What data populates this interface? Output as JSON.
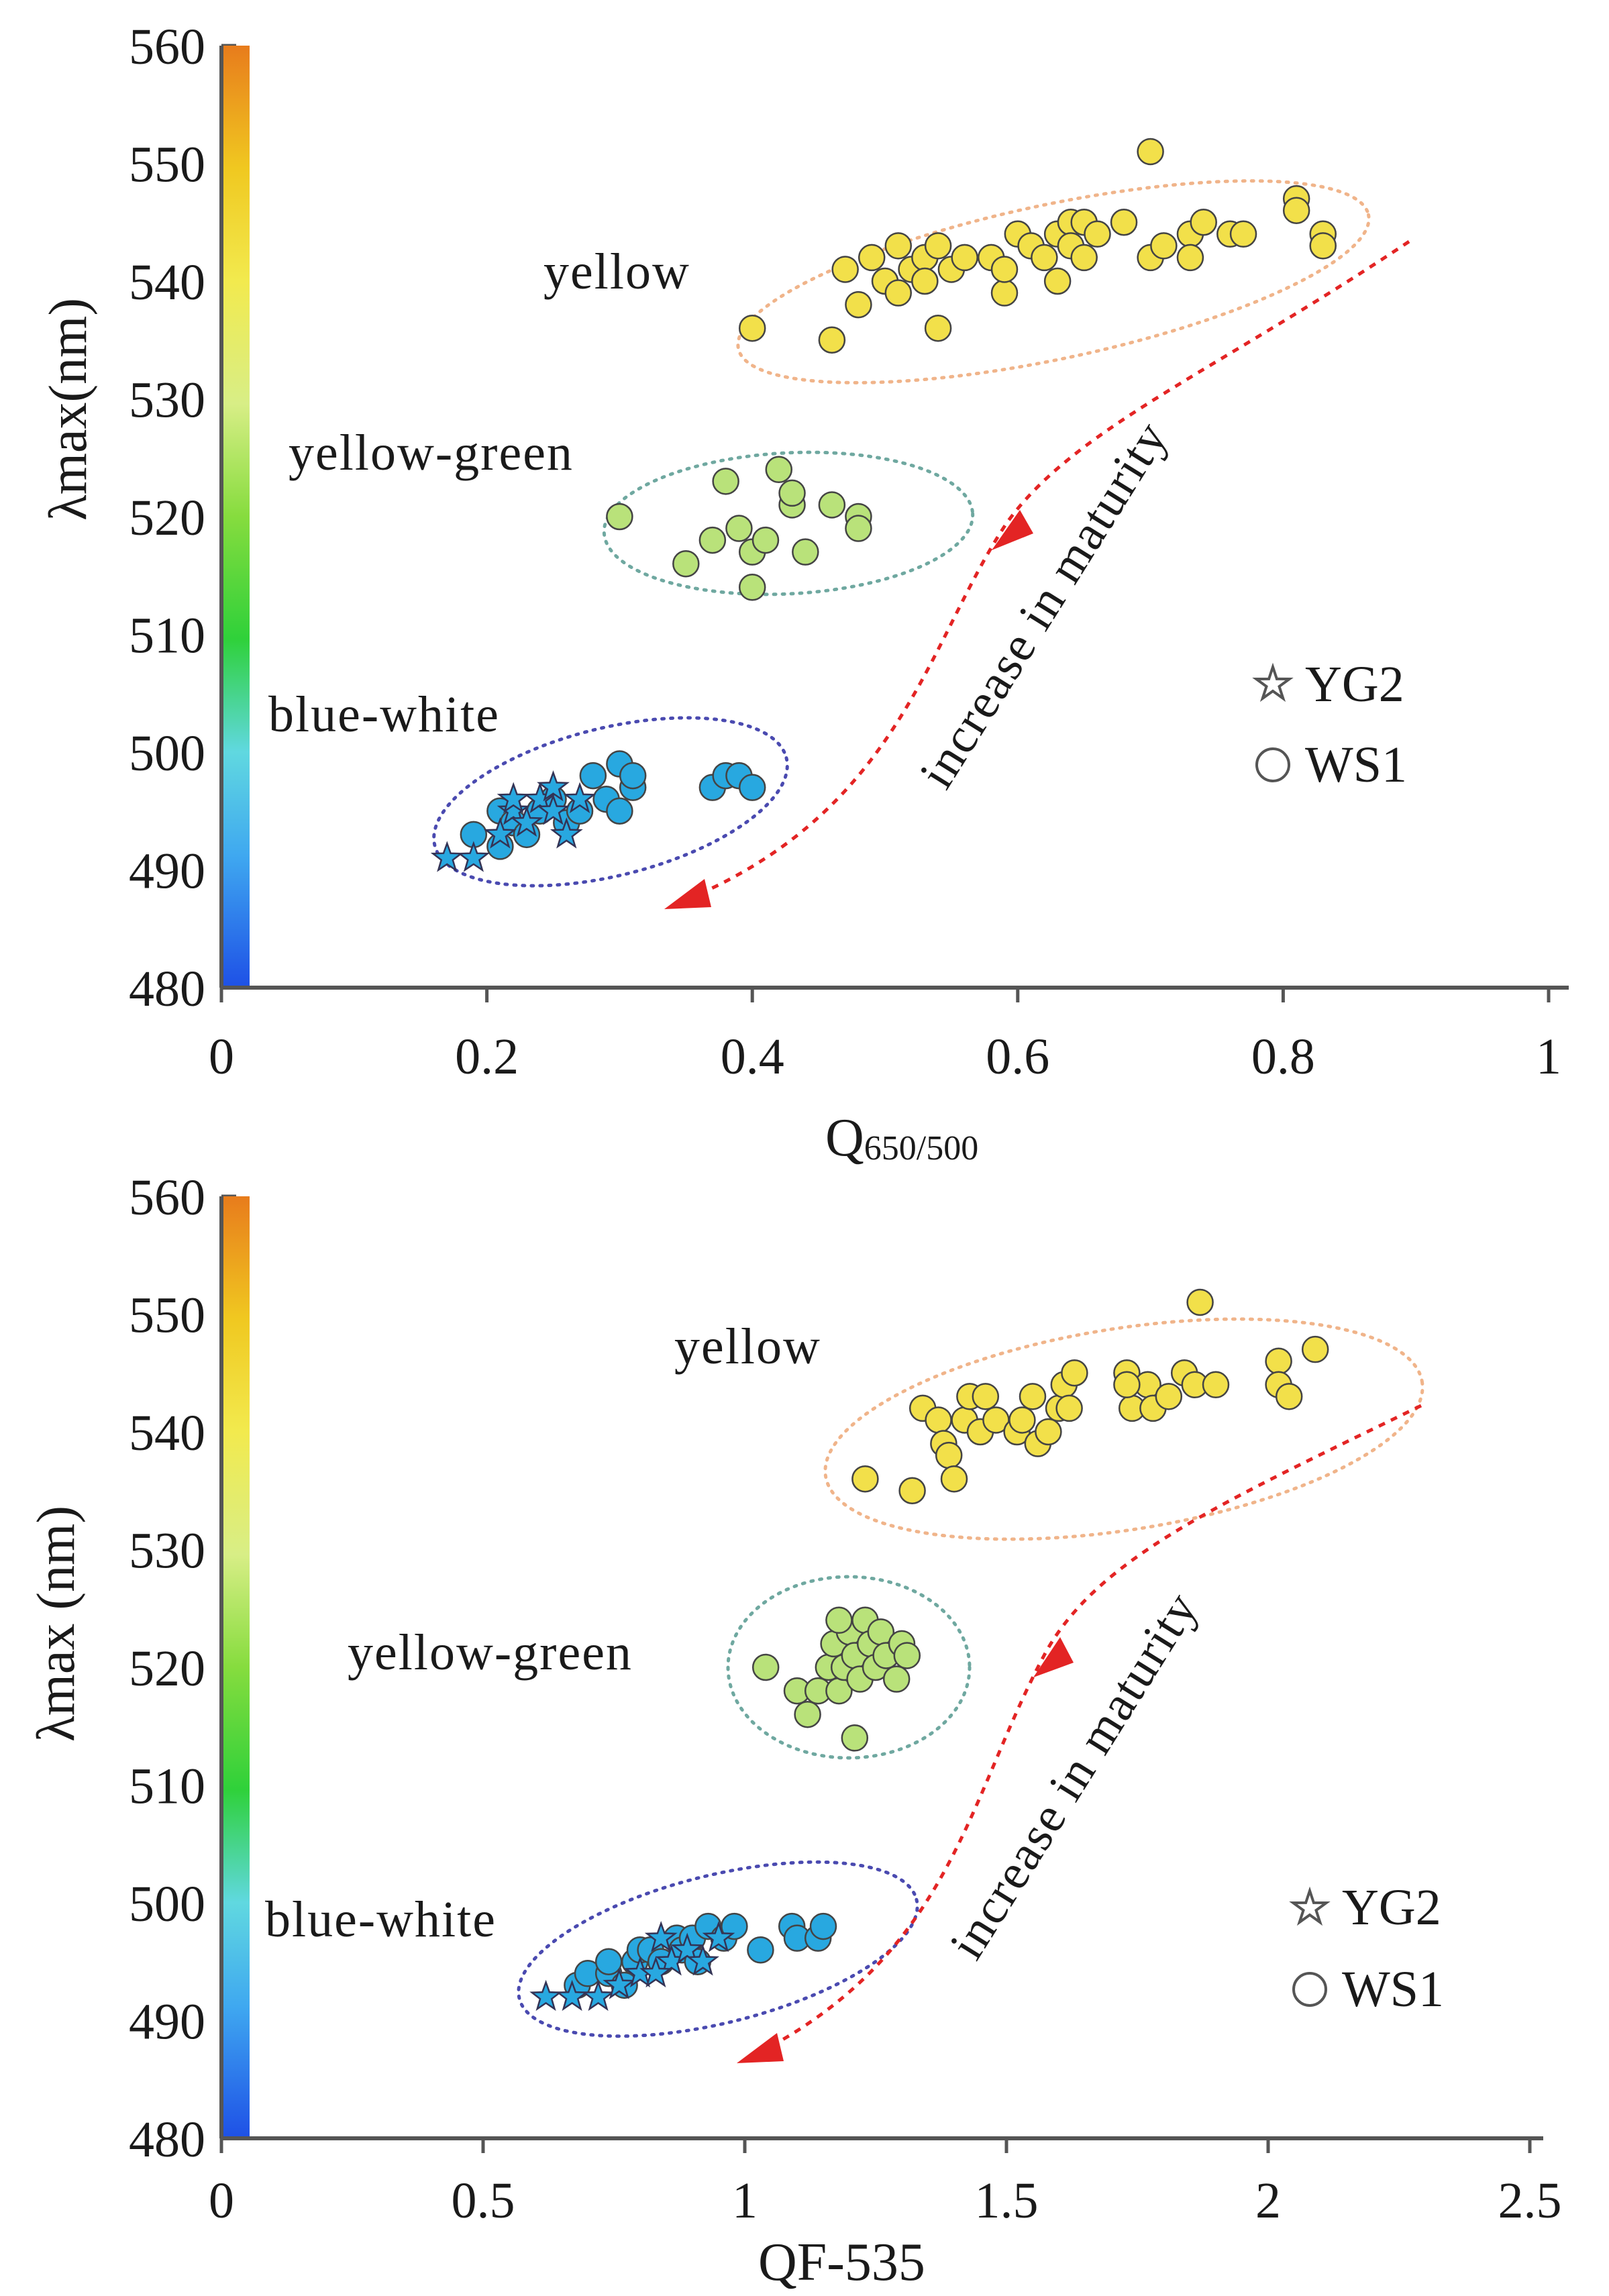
{
  "chart_data": [
    {
      "type": "scatter",
      "xlabel_main": "Q",
      "xlabel_sub": "650/500",
      "ylabel": "λmax(nm)",
      "xlim": [
        0,
        1
      ],
      "ylim": [
        480,
        560
      ],
      "xticks": [
        "0",
        "0.2",
        "0.4",
        "0.6",
        "0.8",
        "1"
      ],
      "yticks": [
        "480",
        "490",
        "500",
        "510",
        "520",
        "530",
        "540",
        "550",
        "560"
      ],
      "trend_label": "increase in maturity",
      "legend": [
        {
          "label": "YG2",
          "marker": "star"
        },
        {
          "label": "WS1",
          "marker": "circle"
        }
      ],
      "groups": [
        {
          "label": "yellow",
          "color": "#f2e04a",
          "ellipse_color": "#f0b48a",
          "series": {
            "WS1": [
              [
                0.4,
                536
              ],
              [
                0.47,
                541
              ],
              [
                0.48,
                538
              ],
              [
                0.49,
                542
              ],
              [
                0.5,
                540
              ],
              [
                0.51,
                543
              ],
              [
                0.51,
                539
              ],
              [
                0.52,
                541
              ],
              [
                0.53,
                542
              ],
              [
                0.53,
                540
              ],
              [
                0.54,
                543
              ],
              [
                0.55,
                541
              ],
              [
                0.56,
                542
              ],
              [
                0.58,
                542
              ],
              [
                0.59,
                539
              ],
              [
                0.59,
                541
              ],
              [
                0.6,
                544
              ],
              [
                0.61,
                543
              ],
              [
                0.62,
                542
              ],
              [
                0.63,
                540
              ],
              [
                0.63,
                544
              ],
              [
                0.64,
                545
              ],
              [
                0.64,
                543
              ],
              [
                0.65,
                545
              ],
              [
                0.65,
                542
              ],
              [
                0.66,
                544
              ],
              [
                0.68,
                545
              ],
              [
                0.7,
                542
              ],
              [
                0.71,
                543
              ],
              [
                0.73,
                544
              ],
              [
                0.74,
                545
              ],
              [
                0.76,
                544
              ],
              [
                0.77,
                544
              ],
              [
                0.81,
                547
              ],
              [
                0.81,
                546
              ],
              [
                0.83,
                544
              ],
              [
                0.83,
                543
              ],
              [
                0.7,
                551
              ],
              [
                0.46,
                535
              ],
              [
                0.54,
                536
              ],
              [
                0.73,
                542
              ]
            ],
            "YG2": []
          }
        },
        {
          "label": "yellow-green",
          "color": "#b9e27a",
          "ellipse_color": "#6fa8a0",
          "series": {
            "WS1": [
              [
                0.3,
                520
              ],
              [
                0.35,
                516
              ],
              [
                0.37,
                518
              ],
              [
                0.38,
                523
              ],
              [
                0.39,
                519
              ],
              [
                0.4,
                517
              ],
              [
                0.41,
                518
              ],
              [
                0.4,
                514
              ],
              [
                0.42,
                524
              ],
              [
                0.43,
                521
              ],
              [
                0.44,
                517
              ],
              [
                0.46,
                521
              ],
              [
                0.48,
                520
              ],
              [
                0.48,
                519
              ],
              [
                0.43,
                522
              ]
            ],
            "YG2": []
          }
        },
        {
          "label": "blue-white",
          "color": "#28a8e0",
          "ellipse_color": "#4a4ab0",
          "series": {
            "WS1": [
              [
                0.19,
                493
              ],
              [
                0.21,
                495
              ],
              [
                0.21,
                492
              ],
              [
                0.22,
                494
              ],
              [
                0.23,
                493
              ],
              [
                0.24,
                495
              ],
              [
                0.25,
                496
              ],
              [
                0.26,
                494
              ],
              [
                0.27,
                495
              ],
              [
                0.28,
                498
              ],
              [
                0.29,
                496
              ],
              [
                0.3,
                499
              ],
              [
                0.3,
                495
              ],
              [
                0.31,
                497
              ],
              [
                0.31,
                498
              ],
              [
                0.37,
                497
              ],
              [
                0.38,
                498
              ],
              [
                0.39,
                498
              ],
              [
                0.4,
                497
              ]
            ],
            "YG2": [
              [
                0.17,
                491
              ],
              [
                0.19,
                491
              ],
              [
                0.21,
                493
              ],
              [
                0.22,
                495
              ],
              [
                0.23,
                494
              ],
              [
                0.24,
                496
              ],
              [
                0.25,
                495
              ],
              [
                0.26,
                493
              ],
              [
                0.27,
                496
              ],
              [
                0.25,
                497
              ],
              [
                0.22,
                496
              ]
            ]
          }
        }
      ]
    },
    {
      "type": "scatter",
      "xlabel_main": "QF-535",
      "xlabel_sub": "",
      "ylabel": "λmax (nm)",
      "xlim": [
        0,
        2.5
      ],
      "ylim": [
        480,
        560
      ],
      "xticks": [
        "0",
        "0.5",
        "1",
        "1.5",
        "2",
        "2.5"
      ],
      "yticks": [
        "480",
        "490",
        "500",
        "510",
        "520",
        "530",
        "540",
        "550",
        "560"
      ],
      "trend_label": "increase in maturity",
      "legend": [
        {
          "label": "YG2",
          "marker": "star"
        },
        {
          "label": "WS1",
          "marker": "circle"
        }
      ],
      "groups": [
        {
          "label": "yellow",
          "color": "#f2e04a",
          "ellipse_color": "#f0b48a",
          "series": {
            "WS1": [
              [
                1.23,
                536
              ],
              [
                1.32,
                535
              ],
              [
                1.34,
                542
              ],
              [
                1.37,
                541
              ],
              [
                1.38,
                539
              ],
              [
                1.39,
                538
              ],
              [
                1.4,
                536
              ],
              [
                1.42,
                541
              ],
              [
                1.43,
                543
              ],
              [
                1.45,
                540
              ],
              [
                1.46,
                543
              ],
              [
                1.48,
                541
              ],
              [
                1.52,
                540
              ],
              [
                1.53,
                541
              ],
              [
                1.55,
                543
              ],
              [
                1.56,
                539
              ],
              [
                1.58,
                540
              ],
              [
                1.6,
                542
              ],
              [
                1.61,
                544
              ],
              [
                1.62,
                542
              ],
              [
                1.63,
                545
              ],
              [
                1.73,
                545
              ],
              [
                1.74,
                542
              ],
              [
                1.77,
                544
              ],
              [
                1.78,
                542
              ],
              [
                1.81,
                543
              ],
              [
                1.84,
                545
              ],
              [
                1.86,
                544
              ],
              [
                1.9,
                544
              ],
              [
                2.02,
                546
              ],
              [
                2.02,
                544
              ],
              [
                2.04,
                543
              ],
              [
                2.09,
                547
              ],
              [
                1.87,
                551
              ],
              [
                1.73,
                544
              ]
            ],
            "YG2": []
          }
        },
        {
          "label": "yellow-green",
          "color": "#b9e27a",
          "ellipse_color": "#6fa8a0",
          "series": {
            "WS1": [
              [
                1.04,
                520
              ],
              [
                1.1,
                518
              ],
              [
                1.12,
                516
              ],
              [
                1.14,
                518
              ],
              [
                1.16,
                520
              ],
              [
                1.17,
                522
              ],
              [
                1.18,
                518
              ],
              [
                1.19,
                520
              ],
              [
                1.2,
                523
              ],
              [
                1.21,
                521
              ],
              [
                1.21,
                514
              ],
              [
                1.22,
                519
              ],
              [
                1.23,
                524
              ],
              [
                1.24,
                522
              ],
              [
                1.25,
                520
              ],
              [
                1.26,
                523
              ],
              [
                1.27,
                521
              ],
              [
                1.29,
                519
              ],
              [
                1.3,
                522
              ],
              [
                1.31,
                521
              ],
              [
                1.18,
                524
              ]
            ],
            "YG2": []
          }
        },
        {
          "label": "blue-white",
          "color": "#28a8e0",
          "ellipse_color": "#4a4ab0",
          "series": {
            "WS1": [
              [
                0.68,
                493
              ],
              [
                0.7,
                494
              ],
              [
                0.74,
                494
              ],
              [
                0.74,
                495
              ],
              [
                0.79,
                495
              ],
              [
                0.8,
                496
              ],
              [
                0.82,
                496
              ],
              [
                0.84,
                495
              ],
              [
                0.87,
                497
              ],
              [
                0.88,
                496
              ],
              [
                0.9,
                497
              ],
              [
                0.91,
                495
              ],
              [
                0.93,
                498
              ],
              [
                0.96,
                497
              ],
              [
                0.98,
                498
              ],
              [
                1.03,
                496
              ],
              [
                1.09,
                498
              ],
              [
                1.1,
                497
              ],
              [
                1.14,
                497
              ],
              [
                1.15,
                498
              ],
              [
                0.77,
                493
              ]
            ],
            "YG2": [
              [
                0.62,
                492
              ],
              [
                0.67,
                492
              ],
              [
                0.72,
                492
              ],
              [
                0.76,
                493
              ],
              [
                0.8,
                494
              ],
              [
                0.84,
                497
              ],
              [
                0.86,
                495
              ],
              [
                0.89,
                496
              ],
              [
                0.92,
                495
              ],
              [
                0.95,
                497
              ],
              [
                0.83,
                494
              ]
            ]
          }
        }
      ]
    }
  ]
}
